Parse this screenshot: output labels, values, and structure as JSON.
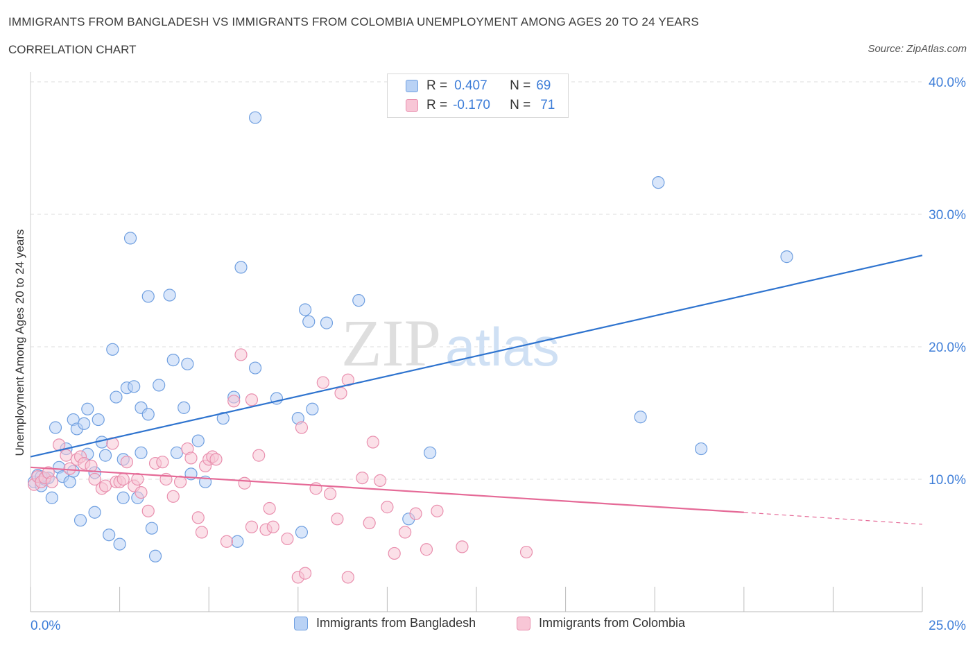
{
  "title": "IMMIGRANTS FROM BANGLADESH VS IMMIGRANTS FROM COLOMBIA UNEMPLOYMENT AMONG AGES 20 TO 24 YEARS",
  "subtitle": "CORRELATION CHART",
  "source": "Source: ZipAtlas.com",
  "watermark": {
    "zip": "ZIP",
    "atlas": "atlas"
  },
  "legend": {
    "bangladesh": {
      "r_label": "R =",
      "r_value": "0.407",
      "n_label": "N =",
      "n_value": "69"
    },
    "colombia": {
      "r_label": "R =",
      "r_value": "-0.170",
      "n_label": "N =",
      "n_value": "71"
    }
  },
  "bottom_legend": {
    "bangladesh": "Immigrants from Bangladesh",
    "colombia": "Immigrants from Colombia"
  },
  "colors": {
    "bangladesh_fill": "#b9d2f5",
    "bangladesh_stroke": "#6f9fe0",
    "bangladesh_line": "#2f74cf",
    "colombia_fill": "#f8c6d6",
    "colombia_stroke": "#e98fae",
    "colombia_line": "#e56a97",
    "axis_label": "#3d7dd8",
    "grid": "#dedede"
  },
  "chart_data": {
    "type": "scatter",
    "ylabel": "Unemployment Among Ages 20 to 24 years",
    "xlim": [
      0,
      25
    ],
    "ylim": [
      0,
      40
    ],
    "x_tick_labels": [
      {
        "value": 0,
        "label": "0.0%"
      },
      {
        "value": 25,
        "label": "25.0%"
      }
    ],
    "y_tick_labels": [
      {
        "value": 10,
        "label": "10.0%"
      },
      {
        "value": 20,
        "label": "20.0%"
      },
      {
        "value": 30,
        "label": "30.0%"
      },
      {
        "value": 40,
        "label": "40.0%"
      }
    ],
    "grid": true,
    "legend_position": "top-center",
    "series": [
      {
        "key": "bangladesh",
        "name": "Immigrants from Bangladesh",
        "trend": {
          "x": [
            0,
            25
          ],
          "y": [
            11.7,
            26.9
          ]
        },
        "points": [
          [
            0.1,
            9.8
          ],
          [
            0.2,
            10.3
          ],
          [
            0.3,
            9.5
          ],
          [
            0.4,
            10.0
          ],
          [
            0.5,
            10.1
          ],
          [
            0.6,
            8.6
          ],
          [
            0.7,
            13.9
          ],
          [
            0.8,
            10.9
          ],
          [
            0.9,
            10.2
          ],
          [
            1.0,
            12.3
          ],
          [
            1.1,
            9.8
          ],
          [
            1.2,
            10.6
          ],
          [
            1.2,
            14.5
          ],
          [
            1.3,
            13.8
          ],
          [
            1.4,
            6.9
          ],
          [
            1.5,
            14.2
          ],
          [
            1.6,
            11.9
          ],
          [
            1.6,
            15.3
          ],
          [
            1.8,
            10.5
          ],
          [
            1.8,
            7.5
          ],
          [
            1.9,
            14.5
          ],
          [
            2.0,
            12.8
          ],
          [
            2.1,
            11.8
          ],
          [
            2.2,
            5.8
          ],
          [
            2.3,
            19.8
          ],
          [
            2.4,
            16.2
          ],
          [
            2.5,
            5.1
          ],
          [
            2.6,
            11.5
          ],
          [
            2.6,
            8.6
          ],
          [
            2.7,
            16.9
          ],
          [
            2.8,
            28.2
          ],
          [
            2.9,
            17.0
          ],
          [
            3.0,
            8.6
          ],
          [
            3.1,
            15.4
          ],
          [
            3.1,
            12.0
          ],
          [
            3.3,
            14.9
          ],
          [
            3.3,
            23.8
          ],
          [
            3.4,
            6.3
          ],
          [
            3.5,
            4.2
          ],
          [
            3.6,
            17.1
          ],
          [
            3.9,
            23.9
          ],
          [
            4.0,
            19.0
          ],
          [
            4.1,
            12.0
          ],
          [
            4.3,
            15.4
          ],
          [
            4.4,
            18.7
          ],
          [
            4.5,
            10.4
          ],
          [
            4.7,
            12.9
          ],
          [
            4.9,
            9.8
          ],
          [
            5.4,
            14.6
          ],
          [
            5.7,
            16.2
          ],
          [
            5.8,
            5.3
          ],
          [
            5.9,
            26.0
          ],
          [
            6.3,
            37.3
          ],
          [
            6.3,
            18.4
          ],
          [
            6.9,
            16.1
          ],
          [
            7.5,
            14.6
          ],
          [
            7.6,
            6.0
          ],
          [
            7.7,
            22.8
          ],
          [
            7.8,
            21.9
          ],
          [
            7.9,
            15.3
          ],
          [
            8.3,
            21.8
          ],
          [
            9.2,
            23.5
          ],
          [
            10.6,
            7.0
          ],
          [
            11.2,
            12.0
          ],
          [
            17.1,
            14.7
          ],
          [
            17.6,
            32.4
          ],
          [
            18.8,
            12.3
          ],
          [
            21.2,
            26.8
          ],
          [
            0.3,
            10.2
          ]
        ]
      },
      {
        "key": "colombia",
        "name": "Immigrants from Colombia",
        "trend": {
          "x": [
            0,
            20
          ],
          "y": [
            10.9,
            7.5
          ]
        },
        "trend_ext": {
          "x": [
            20,
            25
          ],
          "y": [
            7.5,
            6.6
          ]
        },
        "points": [
          [
            0.1,
            9.6
          ],
          [
            0.2,
            10.2
          ],
          [
            0.3,
            9.8
          ],
          [
            0.4,
            10.1
          ],
          [
            0.5,
            10.5
          ],
          [
            0.6,
            9.8
          ],
          [
            0.8,
            12.6
          ],
          [
            1.0,
            11.8
          ],
          [
            1.1,
            10.8
          ],
          [
            1.3,
            11.5
          ],
          [
            1.4,
            11.7
          ],
          [
            1.5,
            11.2
          ],
          [
            1.7,
            11.0
          ],
          [
            1.8,
            10.0
          ],
          [
            2.0,
            9.3
          ],
          [
            2.1,
            9.5
          ],
          [
            2.3,
            12.7
          ],
          [
            2.4,
            9.8
          ],
          [
            2.5,
            9.8
          ],
          [
            2.6,
            10.0
          ],
          [
            2.7,
            11.3
          ],
          [
            2.9,
            9.5
          ],
          [
            3.0,
            10.0
          ],
          [
            3.1,
            9.0
          ],
          [
            3.3,
            7.6
          ],
          [
            3.5,
            11.2
          ],
          [
            3.7,
            11.3
          ],
          [
            3.8,
            10.0
          ],
          [
            4.0,
            8.7
          ],
          [
            4.2,
            9.8
          ],
          [
            4.4,
            12.3
          ],
          [
            4.5,
            11.6
          ],
          [
            4.7,
            7.1
          ],
          [
            4.8,
            6.0
          ],
          [
            4.9,
            11.0
          ],
          [
            5.0,
            11.5
          ],
          [
            5.1,
            11.7
          ],
          [
            5.2,
            11.5
          ],
          [
            5.5,
            5.3
          ],
          [
            5.7,
            15.9
          ],
          [
            5.9,
            19.4
          ],
          [
            6.0,
            9.7
          ],
          [
            6.2,
            6.4
          ],
          [
            6.2,
            16.0
          ],
          [
            6.4,
            11.8
          ],
          [
            6.6,
            6.2
          ],
          [
            6.7,
            7.8
          ],
          [
            6.8,
            6.4
          ],
          [
            7.2,
            5.5
          ],
          [
            7.5,
            2.6
          ],
          [
            7.6,
            13.9
          ],
          [
            7.7,
            2.9
          ],
          [
            8.0,
            9.3
          ],
          [
            8.2,
            17.3
          ],
          [
            8.4,
            8.9
          ],
          [
            8.6,
            7.0
          ],
          [
            8.7,
            16.5
          ],
          [
            8.9,
            17.5
          ],
          [
            8.9,
            2.6
          ],
          [
            9.3,
            10.1
          ],
          [
            9.5,
            6.7
          ],
          [
            9.6,
            12.8
          ],
          [
            9.8,
            9.9
          ],
          [
            10.0,
            7.9
          ],
          [
            10.2,
            4.4
          ],
          [
            10.5,
            6.0
          ],
          [
            10.8,
            7.4
          ],
          [
            11.1,
            4.7
          ],
          [
            11.4,
            7.6
          ],
          [
            12.1,
            4.9
          ],
          [
            13.9,
            4.5
          ]
        ]
      }
    ],
    "extra_points_note": ""
  }
}
